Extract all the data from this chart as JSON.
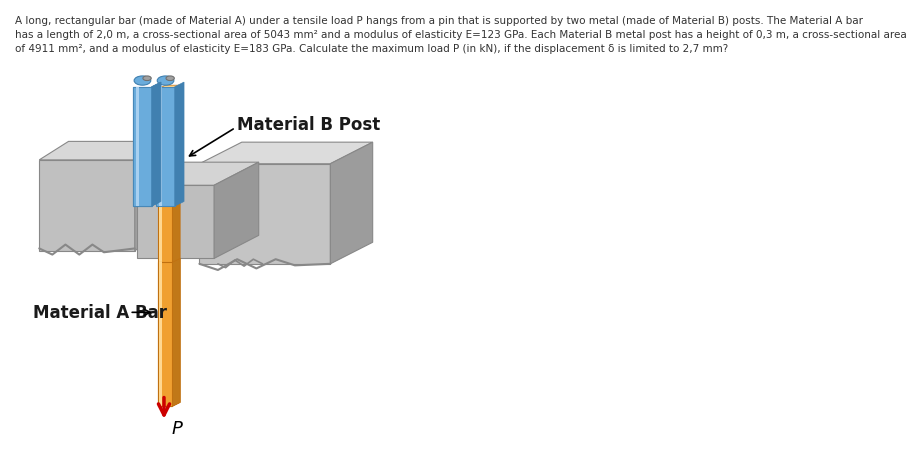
{
  "label_mat_b": "Material B Post",
  "label_mat_a": "Material A Bar",
  "label_p": "P",
  "color_bar_a_main": "#F0A030",
  "color_bar_a_light": "#FFD890",
  "color_bar_a_side": "#C07818",
  "color_post_b_main": "#6AACDC",
  "color_post_b_light": "#A8D0F0",
  "color_post_b_dark": "#4080B0",
  "color_block_face": "#C8C8C8",
  "color_block_top": "#E0E0E0",
  "color_block_side": "#A0A0A0",
  "color_block_face2": "#B8B8B8",
  "color_pin_main": "#A0A0A0",
  "color_pin_light": "#D0D0D0",
  "color_arrow": "#CC0000",
  "bg_color": "#FFFFFF",
  "line1": "A long, rectangular bar (made of Material A) under a tensile load P hangs from a pin that is supported by two metal (made of Material B) posts. The Material A bar",
  "line2": "has a length of 2,0 m, a cross-sectional area of 5043 mm² and a modulus of elasticity E=123 GPa. Each Material B metal post has a height of 0,3 m, a cross-sectional area",
  "line3": "of 4911 mm², and a modulus of elasticity E=183 GPa. Calculate the maximum load P (in kN), if the displacement δ is limited to 2,7 mm?",
  "fig_width": 8.7,
  "fig_height": 5.64
}
